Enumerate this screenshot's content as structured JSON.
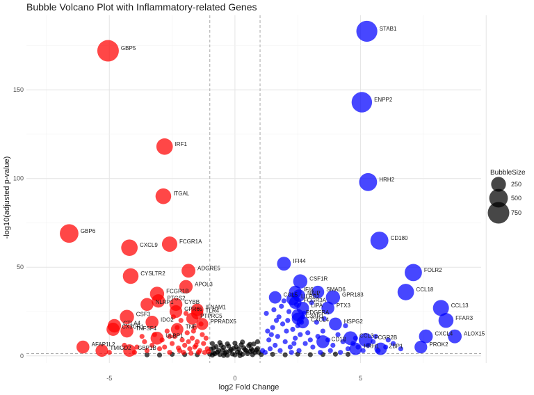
{
  "chart_data": {
    "type": "scatter",
    "title": "Bubble Volcano Plot with Inflammatory-related Genes",
    "xlabel": "log2 Fold Change",
    "ylabel": "-log10(adjusted p-value)",
    "xlim": [
      -8.3,
      9.8
    ],
    "ylim": [
      -4,
      192
    ],
    "x_ticks": [
      -5,
      0,
      5
    ],
    "y_ticks": [
      0,
      50,
      100,
      150
    ],
    "grid": true,
    "fc_thresholds": [
      -1,
      1
    ],
    "p_threshold": 1.3,
    "colors": {
      "down": "#ff0000",
      "up": "#0000ff",
      "ns": "#000000"
    },
    "legend": {
      "title": "BubbleSize",
      "placement": "right",
      "sizes": [
        250,
        500,
        750
      ]
    },
    "labeled_genes": [
      {
        "gene": "STAB1",
        "x": 5.25,
        "y": 183,
        "size": 700,
        "dir": "up"
      },
      {
        "gene": "GBP5",
        "x": -5.05,
        "y": 172,
        "size": 750,
        "dir": "down"
      },
      {
        "gene": "ENPP2",
        "x": 5.05,
        "y": 143,
        "size": 650,
        "dir": "up"
      },
      {
        "gene": "IRF1",
        "x": -2.8,
        "y": 118,
        "size": 350,
        "dir": "down"
      },
      {
        "gene": "HRH2",
        "x": 5.3,
        "y": 98,
        "size": 450,
        "dir": "up"
      },
      {
        "gene": "ITGAL",
        "x": -2.85,
        "y": 90,
        "size": 300,
        "dir": "down"
      },
      {
        "gene": "GBP6",
        "x": -6.6,
        "y": 69,
        "size": 500,
        "dir": "down"
      },
      {
        "gene": "CD180",
        "x": 5.75,
        "y": 65,
        "size": 450,
        "dir": "up"
      },
      {
        "gene": "CXCL9",
        "x": -4.2,
        "y": 61,
        "size": 350,
        "dir": "down"
      },
      {
        "gene": "FCGR1A",
        "x": -2.6,
        "y": 63,
        "size": 280,
        "dir": "down"
      },
      {
        "gene": "IFI44",
        "x": 1.95,
        "y": 52,
        "size": 200,
        "dir": "up"
      },
      {
        "gene": "ADGRE5",
        "x": -1.85,
        "y": 48,
        "size": 200,
        "dir": "down"
      },
      {
        "gene": "FOLR2",
        "x": 7.1,
        "y": 47,
        "size": 400,
        "dir": "up"
      },
      {
        "gene": "CYSLTR2",
        "x": -4.15,
        "y": 45,
        "size": 300,
        "dir": "down"
      },
      {
        "gene": "CSF1R",
        "x": 2.6,
        "y": 42,
        "size": 220,
        "dir": "up"
      },
      {
        "gene": "APOL3",
        "x": -1.95,
        "y": 39,
        "size": 180,
        "dir": "down"
      },
      {
        "gene": "FCGR1B",
        "x": -3.1,
        "y": 35,
        "size": 220,
        "dir": "down"
      },
      {
        "gene": "IFI6",
        "x": 2.4,
        "y": 36,
        "size": 150,
        "dir": "up"
      },
      {
        "gene": "SMAD6",
        "x": 3.3,
        "y": 36,
        "size": 150,
        "dir": "up"
      },
      {
        "gene": "CCL18",
        "x": 6.8,
        "y": 36,
        "size": 350,
        "dir": "up"
      },
      {
        "gene": "NAIP",
        "x": 2.55,
        "y": 34,
        "size": 140,
        "dir": "up"
      },
      {
        "gene": "GPR183",
        "x": 3.9,
        "y": 33,
        "size": 220,
        "dir": "up"
      },
      {
        "gene": "CCL5",
        "x": 1.6,
        "y": 33,
        "size": 140,
        "dir": "up"
      },
      {
        "gene": "LILRB2",
        "x": 2.3,
        "y": 32,
        "size": 140,
        "dir": "up"
      },
      {
        "gene": "PTGS2",
        "x": -3.05,
        "y": 31,
        "size": 180,
        "dir": "down"
      },
      {
        "gene": "NLRP1",
        "x": -3.5,
        "y": 29,
        "size": 160,
        "dir": "down"
      },
      {
        "gene": "CYBB",
        "x": -2.35,
        "y": 29,
        "size": 160,
        "dir": "down"
      },
      {
        "gene": "FCGR3A",
        "x": 2.4,
        "y": 30,
        "size": 140,
        "dir": "up"
      },
      {
        "gene": "PTX3",
        "x": 3.7,
        "y": 27,
        "size": 160,
        "dir": "up"
      },
      {
        "gene": "LIPA",
        "x": 2.7,
        "y": 27,
        "size": 140,
        "dir": "up"
      },
      {
        "gene": "CCL13",
        "x": 8.2,
        "y": 27,
        "size": 320,
        "dir": "up"
      },
      {
        "gene": "IFNAM1",
        "x": -1.5,
        "y": 26,
        "size": 140,
        "dir": "down"
      },
      {
        "gene": "GPR65",
        "x": -2.35,
        "y": 25,
        "size": 150,
        "dir": "down"
      },
      {
        "gene": "TLR4",
        "x": -1.5,
        "y": 24,
        "size": 130,
        "dir": "down"
      },
      {
        "gene": "CSF3",
        "x": -4.3,
        "y": 22,
        "size": 220,
        "dir": "down"
      },
      {
        "gene": "PDGFRA",
        "x": 2.5,
        "y": 23,
        "size": 130,
        "dir": "up"
      },
      {
        "gene": "FFAR3",
        "x": 8.4,
        "y": 20,
        "size": 260,
        "dir": "up"
      },
      {
        "gene": "PTPRC5",
        "x": -1.7,
        "y": 21,
        "size": 120,
        "dir": "down"
      },
      {
        "gene": "C3AR1",
        "x": 2.5,
        "y": 21,
        "size": 120,
        "dir": "up"
      },
      {
        "gene": "IDO2",
        "x": -3.3,
        "y": 19,
        "size": 160,
        "dir": "down"
      },
      {
        "gene": "TNF",
        "x": -2.3,
        "y": 15,
        "size": 140,
        "dir": "down"
      },
      {
        "gene": "CXCL4",
        "x": 2.7,
        "y": 19,
        "size": 130,
        "dir": "up"
      },
      {
        "gene": "PPRADX5",
        "x": -1.3,
        "y": 18,
        "size": 120,
        "dir": "down"
      },
      {
        "gene": "HSPG2",
        "x": 4.0,
        "y": 18,
        "size": 160,
        "dir": "up"
      },
      {
        "gene": "CTLA4",
        "x": -4.8,
        "y": 17,
        "size": 180,
        "dir": "down"
      },
      {
        "gene": "CX3CR1",
        "x": -4.85,
        "y": 15,
        "size": 170,
        "dir": "down"
      },
      {
        "gene": "TNFSF4",
        "x": -4.3,
        "y": 14,
        "size": 160,
        "dir": "down"
      },
      {
        "gene": "CCL3",
        "x": 4.6,
        "y": 10,
        "size": 200,
        "dir": "up"
      },
      {
        "gene": "CXCL4",
        "x": 7.6,
        "y": 11,
        "size": 200,
        "dir": "up"
      },
      {
        "gene": "ALOX15",
        "x": 8.75,
        "y": 11,
        "size": 200,
        "dir": "up"
      },
      {
        "gene": "ULBP1",
        "x": -3.1,
        "y": 10,
        "size": 160,
        "dir": "down"
      },
      {
        "gene": "FCGR2B",
        "x": 5.2,
        "y": 9,
        "size": 200,
        "dir": "up"
      },
      {
        "gene": "CD1B",
        "x": 3.5,
        "y": 8,
        "size": 160,
        "dir": "up"
      },
      {
        "gene": "PROK2",
        "x": 7.4,
        "y": 5,
        "size": 150,
        "dir": "up"
      },
      {
        "gene": "AFAP1L2",
        "x": -6.05,
        "y": 5,
        "size": 160,
        "dir": "down"
      },
      {
        "gene": "TMIGD2",
        "x": -5.3,
        "y": 3,
        "size": 140,
        "dir": "down"
      },
      {
        "gene": "GBP1B",
        "x": -4.2,
        "y": 3,
        "size": 140,
        "dir": "down"
      },
      {
        "gene": "HRH1",
        "x": 4.8,
        "y": 4,
        "size": 140,
        "dir": "up"
      },
      {
        "gene": "ZBP1",
        "x": 5.8,
        "y": 4,
        "size": 140,
        "dir": "up"
      }
    ],
    "background": {
      "down": [
        [
          -1.2,
          2
        ],
        [
          -1.4,
          3
        ],
        [
          -1.6,
          5
        ],
        [
          -1.8,
          4
        ],
        [
          -2.0,
          6
        ],
        [
          -2.2,
          3
        ],
        [
          -1.5,
          8
        ],
        [
          -1.7,
          10
        ],
        [
          -2.1,
          9
        ],
        [
          -2.5,
          7
        ],
        [
          -2.8,
          5
        ],
        [
          -3.0,
          4
        ],
        [
          -1.3,
          12
        ],
        [
          -1.9,
          13
        ],
        [
          -2.4,
          11
        ],
        [
          -3.3,
          6
        ],
        [
          -3.6,
          8
        ],
        [
          -1.1,
          4
        ],
        [
          -1.25,
          7
        ],
        [
          -1.45,
          2
        ],
        [
          -1.65,
          14
        ],
        [
          -2.3,
          16
        ],
        [
          -2.6,
          2
        ],
        [
          -2.9,
          9
        ],
        [
          -3.5,
          3
        ],
        [
          -3.9,
          5
        ],
        [
          -4.4,
          6
        ],
        [
          -1.35,
          18
        ],
        [
          -1.55,
          6
        ],
        [
          -2.05,
          2
        ],
        [
          -2.7,
          14
        ],
        [
          -3.2,
          12
        ],
        [
          -1.15,
          10
        ],
        [
          -1.75,
          1.5
        ],
        [
          -2.15,
          20
        ],
        [
          -1.95,
          24
        ],
        [
          -2.45,
          22
        ],
        [
          -3.7,
          11
        ],
        [
          -4.0,
          2
        ],
        [
          -5.0,
          2
        ],
        [
          -1.05,
          2.5
        ],
        [
          -1.85,
          8
        ],
        [
          -2.25,
          4.5
        ],
        [
          -1.6,
          16
        ],
        [
          -2.6,
          11
        ]
      ],
      "up": [
        [
          1.2,
          2
        ],
        [
          1.4,
          4
        ],
        [
          1.6,
          6
        ],
        [
          1.8,
          3
        ],
        [
          2.0,
          8
        ],
        [
          2.2,
          5
        ],
        [
          2.4,
          10
        ],
        [
          2.6,
          12
        ],
        [
          2.8,
          7
        ],
        [
          3.0,
          9
        ],
        [
          1.3,
          14
        ],
        [
          1.5,
          16
        ],
        [
          1.7,
          11
        ],
        [
          1.9,
          18
        ],
        [
          2.1,
          20
        ],
        [
          2.3,
          15
        ],
        [
          2.5,
          17
        ],
        [
          2.7,
          22
        ],
        [
          2.9,
          13
        ],
        [
          3.1,
          5
        ],
        [
          3.3,
          11
        ],
        [
          3.5,
          14
        ],
        [
          3.7,
          9
        ],
        [
          3.9,
          6
        ],
        [
          4.1,
          12
        ],
        [
          4.3,
          8
        ],
        [
          4.5,
          4
        ],
        [
          4.7,
          7
        ],
        [
          4.9,
          5
        ],
        [
          5.1,
          3
        ],
        [
          5.3,
          6
        ],
        [
          5.5,
          8
        ],
        [
          5.7,
          3
        ],
        [
          6.0,
          5
        ],
        [
          6.3,
          7
        ],
        [
          6.6,
          4
        ],
        [
          1.25,
          24
        ],
        [
          1.55,
          26
        ],
        [
          1.85,
          28
        ],
        [
          2.15,
          25
        ],
        [
          2.45,
          29
        ],
        [
          2.75,
          24
        ],
        [
          3.05,
          30
        ],
        [
          1.1,
          3
        ],
        [
          1.35,
          9
        ],
        [
          1.65,
          20
        ],
        [
          1.95,
          31
        ],
        [
          2.25,
          2
        ],
        [
          2.55,
          3
        ],
        [
          3.4,
          2
        ],
        [
          3.8,
          3
        ],
        [
          4.2,
          2
        ],
        [
          1.45,
          12
        ],
        [
          1.75,
          22
        ],
        [
          2.05,
          14
        ],
        [
          2.35,
          7
        ],
        [
          2.65,
          19
        ],
        [
          3.25,
          19
        ],
        [
          3.55,
          21
        ],
        [
          4.4,
          17
        ],
        [
          4.8,
          10
        ],
        [
          5.6,
          11
        ],
        [
          6.1,
          9
        ]
      ],
      "ns": [
        [
          -0.9,
          0.5
        ],
        [
          -0.8,
          1.2
        ],
        [
          -0.7,
          2.1
        ],
        [
          -0.6,
          0.8
        ],
        [
          -0.5,
          3.2
        ],
        [
          -0.4,
          1.5
        ],
        [
          -0.3,
          0.4
        ],
        [
          -0.2,
          2.8
        ],
        [
          -0.1,
          1.1
        ],
        [
          0.0,
          0.6
        ],
        [
          0.1,
          2.2
        ],
        [
          0.2,
          1.7
        ],
        [
          0.3,
          0.9
        ],
        [
          0.4,
          3.5
        ],
        [
          0.5,
          1.3
        ],
        [
          0.6,
          2.5
        ],
        [
          0.7,
          0.7
        ],
        [
          0.8,
          1.9
        ],
        [
          0.9,
          4.1
        ],
        [
          -0.95,
          3.8
        ],
        [
          -0.85,
          4.5
        ],
        [
          -0.75,
          5.2
        ],
        [
          -0.65,
          3.1
        ],
        [
          -0.55,
          6.0
        ],
        [
          -0.45,
          4.8
        ],
        [
          -0.35,
          2.3
        ],
        [
          -0.25,
          5.5
        ],
        [
          -0.15,
          3.6
        ],
        [
          -0.05,
          4.2
        ],
        [
          0.05,
          5.1
        ],
        [
          0.15,
          3.9
        ],
        [
          0.25,
          6.3
        ],
        [
          0.35,
          4.6
        ],
        [
          0.45,
          2.9
        ],
        [
          0.55,
          5.8
        ],
        [
          0.65,
          4.0
        ],
        [
          0.75,
          6.7
        ],
        [
          0.85,
          3.3
        ],
        [
          -0.9,
          7.0
        ],
        [
          -0.6,
          7.5
        ],
        [
          -0.3,
          6.8
        ],
        [
          0.0,
          7.2
        ],
        [
          0.3,
          7.8
        ],
        [
          0.6,
          6.5
        ],
        [
          0.9,
          8.0
        ],
        [
          -0.85,
          1.6
        ],
        [
          -0.45,
          0.3
        ],
        [
          0.2,
          0.2
        ],
        [
          0.7,
          3.0
        ],
        [
          0.95,
          2.0
        ],
        [
          1.05,
          0.8
        ],
        [
          -1.0,
          1.0
        ],
        [
          1.5,
          0.9
        ],
        [
          -1.5,
          0.7
        ],
        [
          2.0,
          0.6
        ],
        [
          -2.0,
          0.8
        ],
        [
          2.5,
          1.0
        ],
        [
          -2.5,
          0.9
        ],
        [
          3.0,
          0.7
        ],
        [
          -3.0,
          0.5
        ],
        [
          3.5,
          0.8
        ],
        [
          -3.5,
          0.6
        ],
        [
          4.0,
          1.0
        ],
        [
          4.5,
          0.9
        ]
      ]
    }
  }
}
